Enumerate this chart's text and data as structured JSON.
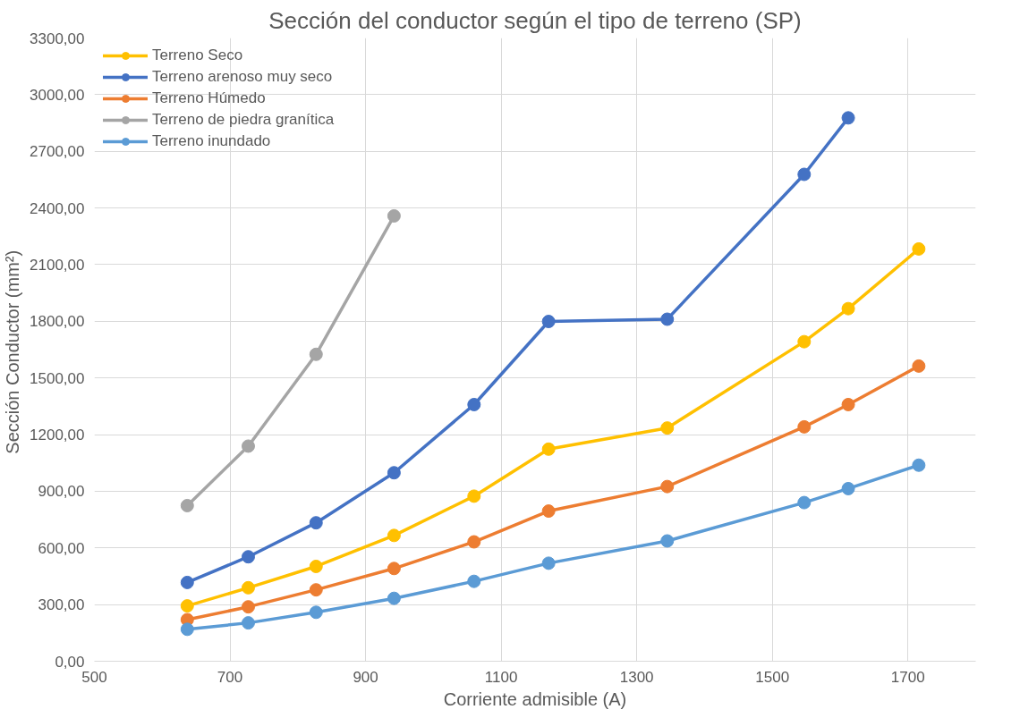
{
  "chart_data": {
    "type": "line",
    "title": "Sección del conductor según el tipo de terreno (SP)",
    "xlabel": "Corriente admisible (A)",
    "ylabel": "Sección Conductor  (mm²)",
    "x": [
      637,
      727,
      827,
      942,
      1060,
      1170,
      1345,
      1547,
      1612,
      1716
    ],
    "series": [
      {
        "name": "Terreno Seco",
        "color": "#ffc000",
        "values": [
          293,
          389,
          502,
          666,
          874,
          1123,
          1235,
          1692,
          1867,
          2183
        ]
      },
      {
        "name": "Terreno arenoso muy seco",
        "color": "#4472c4",
        "values": [
          417,
          553,
          733,
          998,
          1359,
          1799,
          1811,
          2578,
          2877,
          null
        ]
      },
      {
        "name": "Terreno Húmedo",
        "color": "#ed7d31",
        "values": [
          220,
          288,
          378,
          491,
          632,
          795,
          925,
          1241,
          1359,
          1563
        ]
      },
      {
        "name": "Terreno de piedra granítica",
        "color": "#a5a5a5",
        "values": [
          824,
          1139,
          1625,
          2358,
          null,
          null,
          null,
          null,
          null,
          null
        ]
      },
      {
        "name": "Terreno inundado",
        "color": "#5b9bd5",
        "values": [
          169,
          203,
          259,
          333,
          423,
          519,
          637,
          840,
          914,
          1038
        ]
      }
    ],
    "xlim": [
      500,
      1800
    ],
    "xticks": [
      500,
      700,
      900,
      1100,
      1300,
      1500,
      1700
    ],
    "ylim": [
      0,
      3300
    ],
    "yticks": [
      {
        "value": 0,
        "label": "0,00"
      },
      {
        "value": 300,
        "label": "300,00"
      },
      {
        "value": 600,
        "label": "600,00"
      },
      {
        "value": 900,
        "label": "900,00"
      },
      {
        "value": 1200,
        "label": "1200,00"
      },
      {
        "value": 1500,
        "label": "1500,00"
      },
      {
        "value": 1800,
        "label": "1800,00"
      },
      {
        "value": 2100,
        "label": "2100,00"
      },
      {
        "value": 2400,
        "label": "2400,00"
      },
      {
        "value": 2700,
        "label": "2700,00"
      },
      {
        "value": 3000,
        "label": "3000,00"
      },
      {
        "value": 3300,
        "label": "3300,00"
      }
    ],
    "grid": true,
    "legend": "top left",
    "marker": "circle",
    "line_style": "solid"
  }
}
